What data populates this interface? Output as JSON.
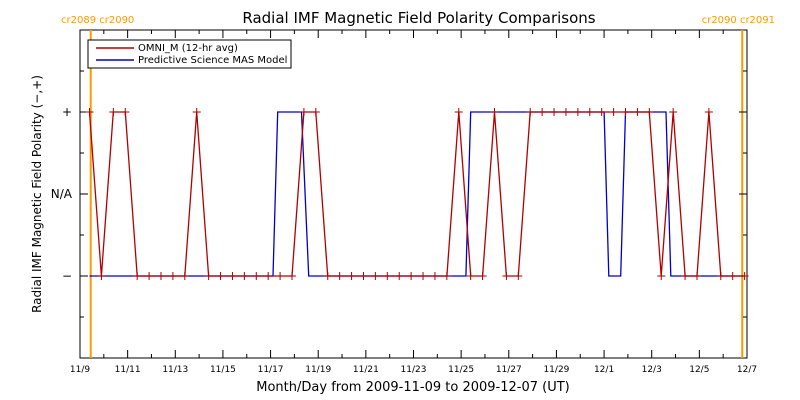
{
  "chart_data": {
    "type": "line",
    "title": "Radial IMF Magnetic Field Polarity Comparisons",
    "xlabel": "Month/Day from 2009-11-09 to 2009-12-07 (UT)",
    "ylabel": "Radial IMF Magnetic Field Polarity (−,+)",
    "xlim": [
      0,
      28
    ],
    "ylim": [
      -2,
      2
    ],
    "x_ticks": [
      {
        "x": 0,
        "label": "11/9"
      },
      {
        "x": 2,
        "label": "11/11"
      },
      {
        "x": 4,
        "label": "11/13"
      },
      {
        "x": 6,
        "label": "11/15"
      },
      {
        "x": 8,
        "label": "11/17"
      },
      {
        "x": 10,
        "label": "11/19"
      },
      {
        "x": 12,
        "label": "11/21"
      },
      {
        "x": 14,
        "label": "11/23"
      },
      {
        "x": 16,
        "label": "11/25"
      },
      {
        "x": 18,
        "label": "11/27"
      },
      {
        "x": 20,
        "label": "11/29"
      },
      {
        "x": 22,
        "label": "12/1"
      },
      {
        "x": 24,
        "label": "12/3"
      },
      {
        "x": 26,
        "label": "12/5"
      },
      {
        "x": 28,
        "label": "12/7"
      }
    ],
    "y_ticks": [
      {
        "y": 1,
        "label": "+"
      },
      {
        "y": 0,
        "label": "N/A"
      },
      {
        "y": -1,
        "label": "−"
      }
    ],
    "carrington_markers": [
      {
        "x": 0.45,
        "label": "cr2089 cr2090",
        "label_side": "left"
      },
      {
        "x": 27.8,
        "label": "cr2090 cr2091",
        "label_side": "right"
      }
    ],
    "legend_position": "top-left",
    "series": [
      {
        "name": "OMNI_M (12-hr avg)",
        "color": "#b00000",
        "marker": "plus",
        "points": [
          [
            0.4,
            1
          ],
          [
            0.9,
            -1
          ],
          [
            1.4,
            1
          ],
          [
            1.9,
            1
          ],
          [
            2.4,
            -1
          ],
          [
            2.9,
            -1
          ],
          [
            3.4,
            -1
          ],
          [
            3.9,
            -1
          ],
          [
            4.4,
            -1
          ],
          [
            4.9,
            1
          ],
          [
            5.4,
            -1
          ],
          [
            5.9,
            -1
          ],
          [
            6.4,
            -1
          ],
          [
            6.9,
            -1
          ],
          [
            7.4,
            -1
          ],
          [
            7.9,
            -1
          ],
          [
            8.4,
            -1
          ],
          [
            8.9,
            -1
          ],
          [
            9.4,
            1
          ],
          [
            9.9,
            1
          ],
          [
            10.4,
            -1
          ],
          [
            10.9,
            -1
          ],
          [
            11.4,
            -1
          ],
          [
            11.9,
            -1
          ],
          [
            12.4,
            -1
          ],
          [
            12.9,
            -1
          ],
          [
            13.4,
            -1
          ],
          [
            13.9,
            -1
          ],
          [
            14.4,
            -1
          ],
          [
            14.9,
            -1
          ],
          [
            15.4,
            -1
          ],
          [
            15.9,
            1
          ],
          [
            16.4,
            -1
          ],
          [
            16.9,
            -1
          ],
          [
            17.4,
            1
          ],
          [
            17.9,
            -1
          ],
          [
            18.4,
            -1
          ],
          [
            18.9,
            1
          ],
          [
            19.4,
            1
          ],
          [
            19.9,
            1
          ],
          [
            20.4,
            1
          ],
          [
            20.9,
            1
          ],
          [
            21.4,
            1
          ],
          [
            21.9,
            1
          ],
          [
            22.4,
            1
          ],
          [
            22.9,
            1
          ],
          [
            23.4,
            1
          ],
          [
            23.9,
            1
          ],
          [
            24.4,
            -1
          ],
          [
            24.9,
            1
          ],
          [
            25.4,
            -1
          ],
          [
            25.9,
            -1
          ],
          [
            26.4,
            1
          ],
          [
            26.9,
            -1
          ],
          [
            27.4,
            -1
          ],
          [
            27.9,
            -1
          ]
        ]
      },
      {
        "name": "Predictive Science MAS Model",
        "color": "#0000cc",
        "marker": "none",
        "points": [
          [
            0.4,
            -1
          ],
          [
            8.1,
            -1
          ],
          [
            8.3,
            1
          ],
          [
            9.3,
            1
          ],
          [
            9.6,
            -1
          ],
          [
            16.2,
            -1
          ],
          [
            16.4,
            1
          ],
          [
            22.0,
            1
          ],
          [
            22.2,
            -1
          ],
          [
            22.7,
            -1
          ],
          [
            22.9,
            1
          ],
          [
            24.6,
            1
          ],
          [
            24.8,
            -1
          ],
          [
            27.9,
            -1
          ]
        ]
      }
    ]
  }
}
